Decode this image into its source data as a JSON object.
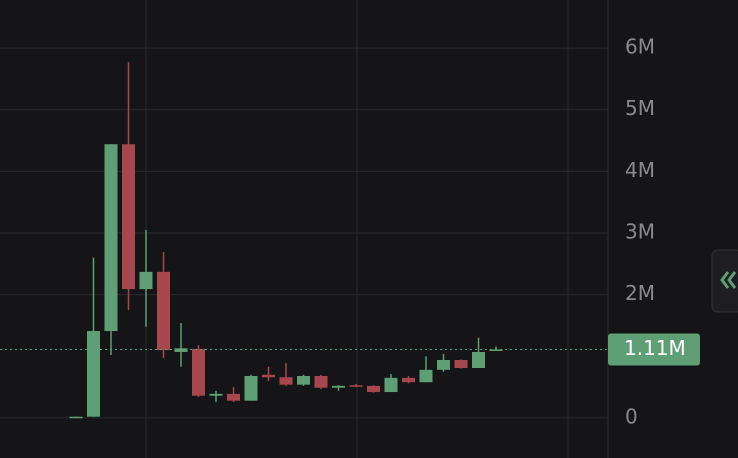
{
  "chart_data": {
    "type": "candlestick",
    "open": [
      0,
      20000,
      1410000,
      4440000,
      2090000,
      2370000,
      1070000,
      1120000,
      360000,
      390000,
      280000,
      700000,
      660000,
      540000,
      680000,
      490000,
      530000,
      520000,
      420000,
      650000,
      580000,
      780000,
      940000,
      810000,
      1090000
    ],
    "high": [
      20000,
      2600000,
      4440000,
      5770000,
      3050000,
      2690000,
      1540000,
      1180000,
      440000,
      500000,
      700000,
      830000,
      890000,
      700000,
      700000,
      530000,
      550000,
      530000,
      710000,
      680000,
      1000000,
      1040000,
      950000,
      1300000,
      1160000
    ],
    "low": [
      0,
      20000,
      1020000,
      1750000,
      1480000,
      970000,
      830000,
      340000,
      260000,
      260000,
      280000,
      600000,
      520000,
      520000,
      470000,
      440000,
      500000,
      410000,
      420000,
      560000,
      580000,
      750000,
      800000,
      810000,
      1090000
    ],
    "close": [
      20000,
      1410000,
      4440000,
      2090000,
      2370000,
      1100000,
      1130000,
      360000,
      390000,
      280000,
      680000,
      660000,
      540000,
      680000,
      490000,
      520000,
      520000,
      420000,
      650000,
      580000,
      780000,
      940000,
      810000,
      1070000,
      1110000
    ],
    "up_color": "#5f9f76",
    "down_color": "#a5474d",
    "ylim": [
      -650000,
      6780000
    ],
    "yticks": [
      {
        "value": 0,
        "label": "0"
      },
      {
        "value": 2000000,
        "label": "2M"
      },
      {
        "value": 3000000,
        "label": "3M"
      },
      {
        "value": 4000000,
        "label": "4M"
      },
      {
        "value": 5000000,
        "label": "5M"
      },
      {
        "value": 6000000,
        "label": "6M"
      }
    ],
    "last_price": {
      "value": 1110000,
      "label": "1.11M"
    },
    "grid": true
  }
}
